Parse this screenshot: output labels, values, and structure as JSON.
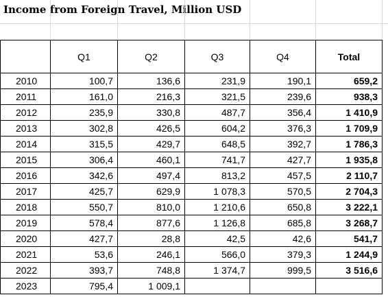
{
  "title": "Income from Foreign Travel, Million USD",
  "headers": [
    "",
    "Q1",
    "Q2",
    "Q3",
    "Q4",
    "Total"
  ],
  "rows": [
    {
      "year": "2010",
      "q1": "100,7",
      "q2": "136,6",
      "q3": "231,9",
      "q4": "190,1",
      "total": "659,2"
    },
    {
      "year": "2011",
      "q1": "161,0",
      "q2": "216,3",
      "q3": "321,5",
      "q4": "239,6",
      "total": "938,3"
    },
    {
      "year": "2012",
      "q1": "235,9",
      "q2": "330,8",
      "q3": "487,7",
      "q4": "356,4",
      "total": "1 410,9"
    },
    {
      "year": "2013",
      "q1": "302,8",
      "q2": "426,5",
      "q3": "604,2",
      "q4": "376,3",
      "total": "1 709,9"
    },
    {
      "year": "2014",
      "q1": "315,5",
      "q2": "429,7",
      "q3": "648,5",
      "q4": "392,7",
      "total": "1 786,3"
    },
    {
      "year": "2015",
      "q1": "306,4",
      "q2": "460,1",
      "q3": "741,7",
      "q4": "427,7",
      "total": "1 935,8"
    },
    {
      "year": "2016",
      "q1": "342,6",
      "q2": "497,4",
      "q3": "813,2",
      "q4": "457,5",
      "total": "2 110,7"
    },
    {
      "year": "2017",
      "q1": "425,7",
      "q2": "629,9",
      "q3": "1 078,3",
      "q4": "570,5",
      "total": "2 704,3"
    },
    {
      "year": "2018",
      "q1": "550,7",
      "q2": "810,0",
      "q3": "1 210,6",
      "q4": "650,8",
      "total": "3 222,1"
    },
    {
      "year": "2019",
      "q1": "578,4",
      "q2": "877,6",
      "q3": "1 126,8",
      "q4": "685,8",
      "total": "3 268,7"
    },
    {
      "year": "2020",
      "q1": "427,7",
      "q2": "28,8",
      "q3": "42,5",
      "q4": "42,6",
      "total": "541,7"
    },
    {
      "year": "2021",
      "q1": "53,6",
      "q2": "246,1",
      "q3": "566,0",
      "q4": "379,3",
      "total": "1 244,9"
    },
    {
      "year": "2022",
      "q1": "393,7",
      "q2": "748,8",
      "q3": "1 374,7",
      "q4": "999,5",
      "total": "3 516,6"
    },
    {
      "year": "2023",
      "q1": "795,4",
      "q2": "1 009,1",
      "q3": "",
      "q4": "",
      "total": ""
    }
  ]
}
